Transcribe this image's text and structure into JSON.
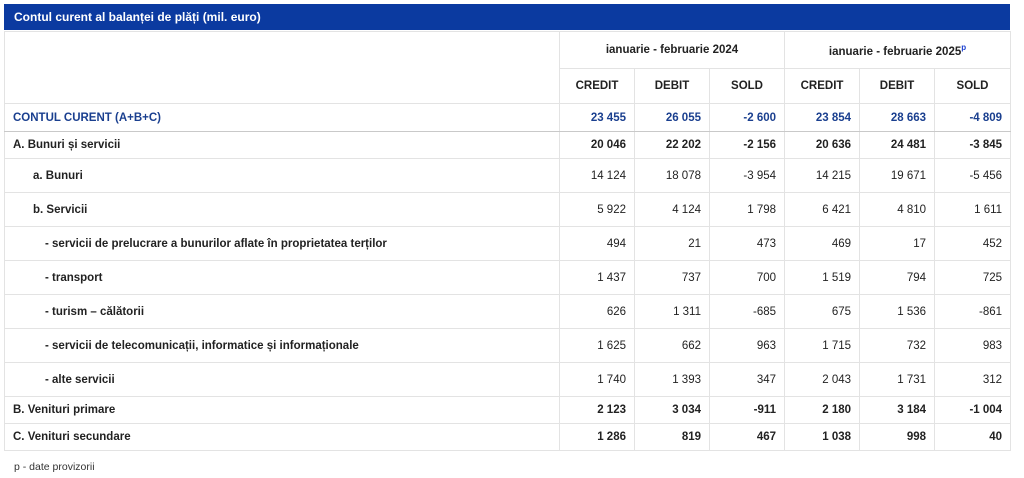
{
  "title": "Contul curent al balanței de plăți (mil. euro)",
  "periods": {
    "p1": "ianuarie - februarie 2024",
    "p2": "ianuarie - februarie 2025",
    "p2_marker": "p"
  },
  "columns": [
    "CREDIT",
    "DEBIT",
    "SOLD",
    "CREDIT",
    "DEBIT",
    "SOLD"
  ],
  "rows": [
    {
      "label": "CONTUL CURENT (A+B+C)",
      "values": [
        "23 455",
        "26 055",
        "-2 600",
        "23 854",
        "28 663",
        "-4 809"
      ]
    },
    {
      "label": "A. Bunuri și servicii",
      "values": [
        "20 046",
        "22 202",
        "-2 156",
        "20 636",
        "24 481",
        "-3 845"
      ]
    },
    {
      "label": "a. Bunuri",
      "values": [
        "14 124",
        "18 078",
        "-3 954",
        "14 215",
        "19 671",
        "-5 456"
      ]
    },
    {
      "label": "b. Servicii",
      "values": [
        "5 922",
        "4 124",
        "1 798",
        "6 421",
        "4 810",
        "1 611"
      ]
    },
    {
      "label": "- servicii de prelucrare a bunurilor aflate în proprietatea terților",
      "values": [
        "494",
        "21",
        "473",
        "469",
        "17",
        "452"
      ]
    },
    {
      "label": "- transport",
      "values": [
        "1 437",
        "737",
        "700",
        "1 519",
        "794",
        "725"
      ]
    },
    {
      "label": "- turism – călătorii",
      "values": [
        "626",
        "1 311",
        "-685",
        "675",
        "1 536",
        "-861"
      ]
    },
    {
      "label": "- servicii de telecomunicații, informatice și informaționale",
      "values": [
        "1 625",
        "662",
        "963",
        "1 715",
        "732",
        "983"
      ]
    },
    {
      "label": "- alte servicii",
      "values": [
        "1 740",
        "1 393",
        "347",
        "2 043",
        "1 731",
        "312"
      ]
    },
    {
      "label": "B. Venituri primare",
      "values": [
        "2 123",
        "3 034",
        "-911",
        "2 180",
        "3 184",
        "-1 004"
      ]
    },
    {
      "label": "C. Venituri secundare",
      "values": [
        "1 286",
        "819",
        "467",
        "1 038",
        "998",
        "40"
      ]
    }
  ],
  "footnote": "p - date provizorii",
  "colors": {
    "header_bg": "#0b3aa0",
    "current_text": "#1a3f8f"
  }
}
